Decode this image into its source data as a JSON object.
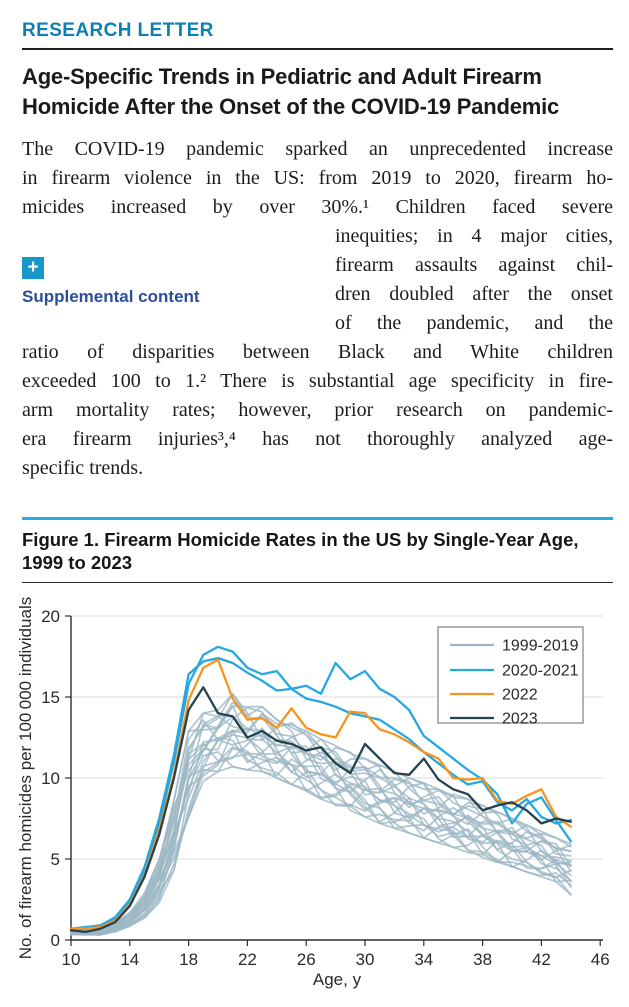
{
  "header": {
    "kicker": "RESEARCH LETTER",
    "title_lines": [
      "Age-Specific Trends in Pediatric and Adult Firearm",
      "Homicide After the Onset of the COVID-19 Pandemic"
    ]
  },
  "supplemental": {
    "icon_glyph": "+",
    "label": "Supplemental content"
  },
  "body_lines": [
    {
      "t": "The COVID-19 pandemic sparked an unprecedented increase",
      "indent": false,
      "justify": true
    },
    {
      "t": "in firearm violence in the US: from 2019 to 2020, firearm ho-",
      "indent": false,
      "justify": true
    },
    {
      "t": "micides increased by over 30%.¹ Children faced severe",
      "indent": false,
      "justify": true
    },
    {
      "t": "inequities; in 4 major cities,",
      "indent": true,
      "justify": true
    },
    {
      "t": "firearm assaults against chil-",
      "indent": true,
      "justify": true
    },
    {
      "t": "dren doubled after the onset",
      "indent": true,
      "justify": true
    },
    {
      "t": "of the pandemic, and the",
      "indent": true,
      "justify": true
    },
    {
      "t": "ratio of disparities between Black and White children",
      "indent": false,
      "justify": true
    },
    {
      "t": "exceeded 100 to 1.² There is substantial age specificity in fire-",
      "indent": false,
      "justify": true
    },
    {
      "t": "arm mortality rates; however, prior research on pandemic-",
      "indent": false,
      "justify": true
    },
    {
      "t": "era firearm injuries³,⁴ has not thoroughly analyzed age-",
      "indent": false,
      "justify": true
    },
    {
      "t": "specific trends.",
      "indent": false,
      "justify": false
    }
  ],
  "figure": {
    "caption_lines": [
      "Figure 1. Firearm Homicide Rates in the US by Single-Year Age,",
      "1999 to 2023"
    ]
  },
  "colors": {
    "kicker_blue": "#0e7fb3",
    "link_blue": "#2c4e9c",
    "plus_icon_bg": "#1798c9",
    "figure_rule_cyan": "#2ea9e0",
    "series_gray": "#9cb6c4",
    "series_blue": "#27a7e1",
    "series_orange": "#f7941e",
    "series_dark": "#25424f",
    "gridline": "#dcdcdc",
    "axis": "#2e2e2e"
  },
  "chart_data": {
    "type": "line",
    "title": "Firearm Homicide Rates in the US by Single-Year Age, 1999 to 2023",
    "xlabel": "Age, y",
    "ylabel": "No. of firearm homicides per 100 000 individuals",
    "xlim": [
      10,
      46
    ],
    "ylim": [
      0,
      20
    ],
    "xticks": [
      10,
      14,
      18,
      22,
      26,
      30,
      34,
      38,
      42,
      46
    ],
    "yticks": [
      0,
      5,
      10,
      15,
      20
    ],
    "grid": "horizontal-only",
    "legend_position": "top-right",
    "x_ages": [
      10,
      11,
      12,
      13,
      14,
      15,
      16,
      17,
      18,
      19,
      20,
      21,
      22,
      23,
      24,
      25,
      26,
      27,
      28,
      29,
      30,
      31,
      32,
      33,
      34,
      35,
      36,
      37,
      38,
      39,
      40,
      41,
      42,
      43,
      44
    ],
    "series": [
      {
        "name": "1999-2019",
        "color": "#9cb6c4",
        "style": "band-of-annual-lines",
        "lines_count": 21,
        "envelope_min": [
          0.3,
          0.3,
          0.3,
          0.5,
          0.8,
          1.3,
          2.3,
          4.3,
          7.6,
          9.8,
          10.4,
          10.7,
          10.5,
          10.4,
          10.0,
          9.6,
          9.2,
          8.7,
          8.3,
          8.0,
          7.6,
          7.2,
          6.9,
          6.6,
          6.3,
          6.0,
          5.7,
          5.4,
          5.1,
          4.8,
          4.5,
          4.2,
          3.9,
          3.6,
          2.8
        ],
        "envelope_max": [
          0.7,
          0.7,
          0.8,
          1.1,
          1.7,
          2.9,
          5.0,
          8.6,
          12.9,
          14.0,
          14.2,
          15.2,
          14.4,
          14.4,
          13.6,
          13.4,
          12.9,
          12.4,
          12.0,
          11.6,
          11.2,
          10.8,
          10.4,
          10.0,
          9.7,
          9.3,
          9.0,
          8.7,
          8.3,
          7.9,
          7.5,
          7.1,
          6.7,
          6.3,
          6.0
        ],
        "note": "21 overlapping lines, one per year 1999-2019; per-age min/max envelope read from figure"
      },
      {
        "name": "2020-2021",
        "color": "#27a7e1",
        "lines": [
          [
            0.7,
            0.7,
            0.9,
            1.3,
            2.4,
            4.3,
            7.2,
            11.0,
            15.8,
            17.6,
            18.1,
            17.8,
            16.8,
            16.4,
            16.6,
            15.5,
            15.7,
            15.2,
            17.1,
            16.1,
            16.6,
            15.5,
            15.0,
            14.2,
            12.6,
            11.9,
            11.2,
            10.5,
            9.9,
            9.0,
            7.2,
            8.4,
            8.8,
            7.4,
            6.1
          ],
          [
            0.7,
            0.8,
            0.9,
            1.4,
            2.5,
            4.5,
            7.5,
            11.4,
            16.4,
            17.2,
            17.4,
            17.1,
            16.5,
            16.0,
            15.4,
            15.5,
            14.9,
            14.7,
            14.4,
            14.0,
            13.8,
            13.6,
            13.0,
            12.4,
            11.6,
            10.9,
            10.2,
            9.6,
            9.8,
            8.5,
            8.0,
            8.7,
            7.6,
            7.2,
            7.4
          ]
        ]
      },
      {
        "name": "2022",
        "color": "#f7941e",
        "values": [
          0.7,
          0.7,
          0.8,
          1.2,
          2.2,
          4.0,
          6.8,
          10.2,
          14.8,
          16.8,
          17.3,
          14.9,
          13.6,
          13.7,
          13.1,
          14.3,
          13.1,
          12.7,
          12.5,
          14.1,
          14.0,
          13.0,
          12.7,
          12.2,
          11.6,
          11.2,
          10.0,
          9.9,
          10.0,
          8.6,
          8.4,
          8.9,
          9.3,
          7.6,
          7.0
        ]
      },
      {
        "name": "2023",
        "color": "#25424f",
        "values": [
          0.6,
          0.5,
          0.7,
          1.1,
          2.1,
          3.9,
          6.5,
          10.0,
          14.2,
          15.6,
          14.0,
          13.8,
          12.5,
          12.9,
          12.3,
          12.1,
          11.7,
          11.9,
          10.9,
          10.3,
          12.1,
          11.2,
          10.3,
          10.2,
          11.2,
          9.9,
          9.3,
          9.0,
          8.0,
          8.3,
          8.5,
          8.0,
          7.2,
          7.5,
          7.3
        ]
      }
    ]
  }
}
